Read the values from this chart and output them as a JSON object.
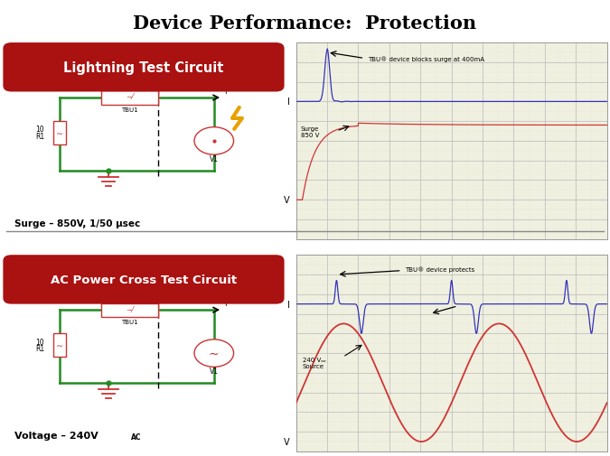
{
  "title": "Device Performance:  Protection",
  "title_fontsize": 15,
  "title_fontweight": "bold",
  "bg_color": "#ffffff",
  "panel1_label": "Lightning Test Circuit",
  "panel2_label": "AC Power Cross Test Circuit",
  "surge_text": "Surge – 850V, 1/50 μsec",
  "voltage_text": "Voltage – 240V",
  "voltage_subscript": "AC",
  "label_bg": "#aa1111",
  "label_fg": "#ffffff",
  "osc1_annotation": "TBU® device blocks surge at 400mA",
  "osc1_surge_label": "Surge\n850 V",
  "osc2_annotation": "TBU® device protects",
  "grid_color": "#bbbbbb",
  "grid_minor_color": "#dddddd",
  "osc_bg": "#f0f0e0",
  "blue_color": "#3333bb",
  "red_color": "#cc2222",
  "circuit_green": "#228B22",
  "circuit_red": "#cc3333",
  "divider_color": "#888888",
  "arrow_color": "#000000"
}
